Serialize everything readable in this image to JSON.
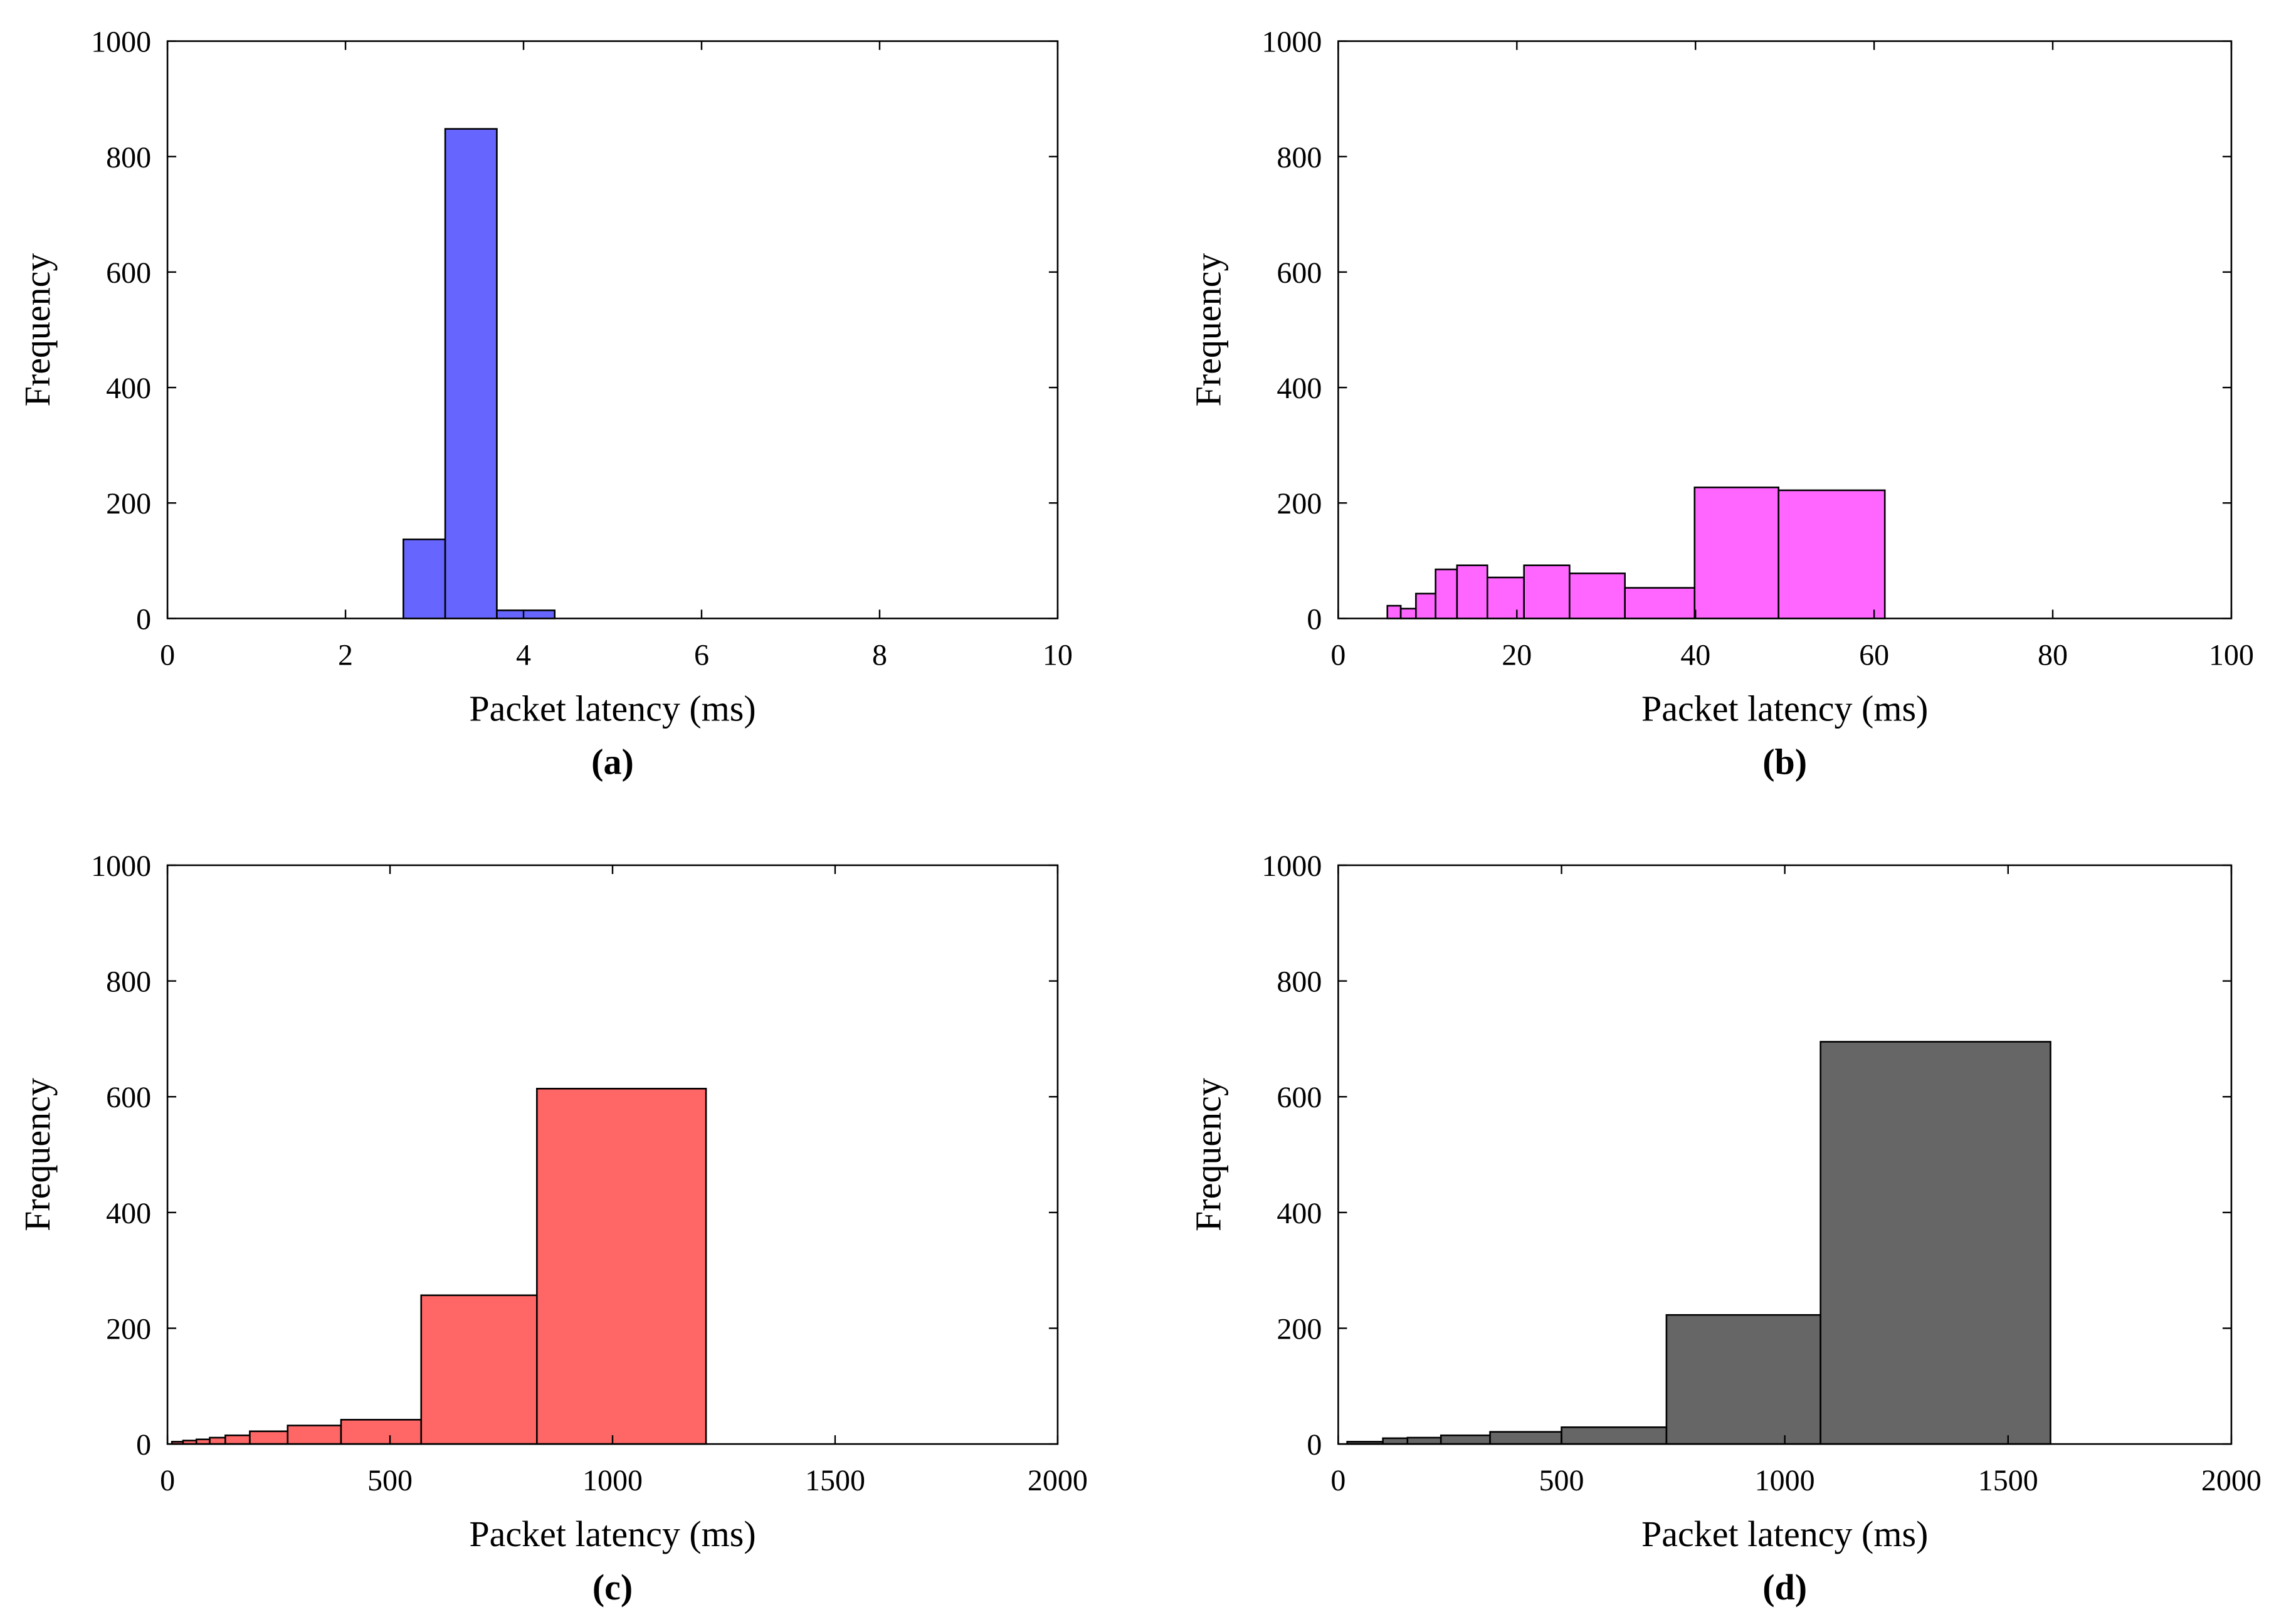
{
  "chart_data": [
    {
      "type": "histogram",
      "panel_label": "(a)",
      "xlabel": "Packet latency (ms)",
      "ylabel": "Frequency",
      "xlim": [
        0,
        10
      ],
      "ylim": [
        0,
        1000
      ],
      "xticks": [
        0,
        2,
        4,
        6,
        8,
        10
      ],
      "yticks": [
        0,
        200,
        400,
        600,
        800,
        1000
      ],
      "color": "#6666ff",
      "bins": [
        {
          "x0": 2.65,
          "x1": 3.12,
          "value": 137
        },
        {
          "x0": 3.12,
          "x1": 3.7,
          "value": 848
        },
        {
          "x0": 3.7,
          "x1": 4.35,
          "value": 14
        }
      ]
    },
    {
      "type": "histogram",
      "panel_label": "(b)",
      "xlabel": "Packet latency (ms)",
      "ylabel": "Frequency",
      "xlim": [
        0,
        100
      ],
      "ylim": [
        0,
        1000
      ],
      "xticks": [
        0,
        20,
        40,
        60,
        80,
        100
      ],
      "yticks": [
        0,
        200,
        400,
        600,
        800,
        1000
      ],
      "color": "#ff66ff",
      "bins": [
        {
          "x0": 5.5,
          "x1": 7.0,
          "value": 22
        },
        {
          "x0": 7.0,
          "x1": 8.7,
          "value": 17
        },
        {
          "x0": 8.7,
          "x1": 10.9,
          "value": 43
        },
        {
          "x0": 10.9,
          "x1": 13.3,
          "value": 85
        },
        {
          "x0": 13.3,
          "x1": 16.7,
          "value": 92
        },
        {
          "x0": 16.7,
          "x1": 20.8,
          "value": 71
        },
        {
          "x0": 20.8,
          "x1": 25.9,
          "value": 92
        },
        {
          "x0": 25.9,
          "x1": 32.1,
          "value": 78
        },
        {
          "x0": 32.1,
          "x1": 39.9,
          "value": 53
        },
        {
          "x0": 39.9,
          "x1": 49.3,
          "value": 227
        },
        {
          "x0": 49.3,
          "x1": 61.2,
          "value": 222
        }
      ]
    },
    {
      "type": "histogram",
      "panel_label": "(c)",
      "xlabel": "Packet latency (ms)",
      "ylabel": "Frequency",
      "xlim": [
        0,
        2000
      ],
      "ylim": [
        0,
        1000
      ],
      "xticks": [
        0,
        500,
        1000,
        1500,
        2000
      ],
      "yticks": [
        0,
        200,
        400,
        600,
        800,
        1000
      ],
      "color": "#ff6666",
      "bins": [
        {
          "x0": 10,
          "x1": 35,
          "value": 4
        },
        {
          "x0": 35,
          "x1": 65,
          "value": 6
        },
        {
          "x0": 65,
          "x1": 95,
          "value": 8
        },
        {
          "x0": 95,
          "x1": 130,
          "value": 11
        },
        {
          "x0": 130,
          "x1": 185,
          "value": 15
        },
        {
          "x0": 185,
          "x1": 270,
          "value": 22
        },
        {
          "x0": 270,
          "x1": 390,
          "value": 32
        },
        {
          "x0": 390,
          "x1": 570,
          "value": 42
        },
        {
          "x0": 570,
          "x1": 830,
          "value": 257
        },
        {
          "x0": 830,
          "x1": 1210,
          "value": 614
        }
      ]
    },
    {
      "type": "histogram",
      "panel_label": "(d)",
      "xlabel": "Packet latency (ms)",
      "ylabel": "Frequency",
      "xlim": [
        0,
        2000
      ],
      "ylim": [
        0,
        1000
      ],
      "xticks": [
        0,
        500,
        1000,
        1500,
        2000
      ],
      "yticks": [
        0,
        200,
        400,
        600,
        800,
        1000
      ],
      "color": "#666666",
      "bins": [
        {
          "x0": 20,
          "x1": 100,
          "value": 4
        },
        {
          "x0": 100,
          "x1": 155,
          "value": 10
        },
        {
          "x0": 155,
          "x1": 230,
          "value": 11
        },
        {
          "x0": 230,
          "x1": 340,
          "value": 15
        },
        {
          "x0": 340,
          "x1": 500,
          "value": 21
        },
        {
          "x0": 500,
          "x1": 735,
          "value": 29
        },
        {
          "x0": 735,
          "x1": 1080,
          "value": 223
        },
        {
          "x0": 1080,
          "x1": 1595,
          "value": 695
        }
      ]
    }
  ]
}
